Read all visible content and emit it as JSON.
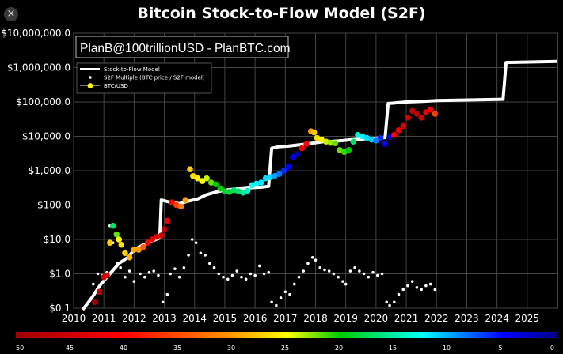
{
  "window": {
    "close_label": "×",
    "title": "Bitcoin Stock-to-Flow Model (S2F)"
  },
  "chart_data": {
    "type": "scatter",
    "title": "Bitcoin Stock-to-Flow Model (S2F)",
    "watermark": "PlanB@100trillionUSD - PlanBTC.com",
    "y_scale": "log",
    "ylim": [
      0.1,
      10000000
    ],
    "xlim": [
      2010,
      2026
    ],
    "grid": true,
    "legend_position": "top-left",
    "y_ticks": [
      {
        "value": 10000000,
        "label": "$10,000,000.0"
      },
      {
        "value": 1000000,
        "label": "$1,000,000.0"
      },
      {
        "value": 100000,
        "label": "$100,000.0"
      },
      {
        "value": 10000,
        "label": "$10,000.0"
      },
      {
        "value": 1000,
        "label": "$1,000.0"
      },
      {
        "value": 100,
        "label": "$100.0"
      },
      {
        "value": 10,
        "label": "$10.0"
      },
      {
        "value": 1,
        "label": "$1.0"
      },
      {
        "value": 0.1,
        "label": "$0.1"
      }
    ],
    "x_ticks": [
      {
        "value": 2010,
        "label": "2010"
      },
      {
        "value": 2011,
        "label": "2011"
      },
      {
        "value": 2012,
        "label": "2012"
      },
      {
        "value": 2013,
        "label": "2013"
      },
      {
        "value": 2014,
        "label": "2014"
      },
      {
        "value": 2015,
        "label": "2015"
      },
      {
        "value": 2016,
        "label": "2016"
      },
      {
        "value": 2017,
        "label": "2017"
      },
      {
        "value": 2018,
        "label": "2018"
      },
      {
        "value": 2019,
        "label": "2019"
      },
      {
        "value": 2020,
        "label": "2020"
      },
      {
        "value": 2021,
        "label": "2021"
      },
      {
        "value": 2022,
        "label": "2022"
      },
      {
        "value": 2023,
        "label": "2023"
      },
      {
        "value": 2024,
        "label": "2024"
      },
      {
        "value": 2025,
        "label": "2025"
      }
    ],
    "legend": [
      {
        "label": "Stock-to-Flow Model",
        "color": "#ffffff",
        "kind": "line"
      },
      {
        "label": "S2F Multiple (BTC price / S2F model)",
        "color": "#ffffff",
        "kind": "dot"
      },
      {
        "label": "BTC/USD",
        "color": "#ffff00",
        "kind": "dot"
      }
    ],
    "colorbar": {
      "ticks": [
        {
          "value": 50,
          "label": "50"
        },
        {
          "value": 45,
          "label": "45"
        },
        {
          "value": 40,
          "label": "40"
        },
        {
          "value": 35,
          "label": "35"
        },
        {
          "value": 30,
          "label": "30"
        },
        {
          "value": 25,
          "label": "25"
        },
        {
          "value": 20,
          "label": "20"
        },
        {
          "value": 15,
          "label": "15"
        },
        {
          "value": 10,
          "label": "10"
        },
        {
          "value": 5,
          "label": "5"
        },
        {
          "value": 0,
          "label": "0"
        }
      ]
    },
    "series": [
      {
        "name": "Stock-to-Flow Model",
        "kind": "line",
        "color": "#ffffff",
        "x": [
          2010.3,
          2010.6,
          2010.9,
          2011.2,
          2011.5,
          2011.8,
          2012.0,
          2012.3,
          2012.6,
          2012.85,
          2012.9,
          2013.2,
          2013.5,
          2013.8,
          2014.1,
          2014.4,
          2014.7,
          2015.0,
          2015.3,
          2015.6,
          2015.9,
          2016.2,
          2016.45,
          2016.55,
          2016.8,
          2017.1,
          2017.4,
          2017.7,
          2018.0,
          2018.3,
          2018.6,
          2018.9,
          2019.2,
          2019.5,
          2019.8,
          2020.1,
          2020.3,
          2020.4,
          2020.7,
          2021.0,
          2021.3,
          2021.6,
          2021.9,
          2022.0,
          2024.2,
          2024.3,
          2026.0
        ],
        "y": [
          0.09,
          0.2,
          0.5,
          1.0,
          2.0,
          3.0,
          5.0,
          7.0,
          9.0,
          11.0,
          140,
          120,
          110,
          130,
          150,
          200,
          240,
          270,
          290,
          300,
          320,
          330,
          350,
          4500,
          5000,
          5200,
          5600,
          6000,
          6500,
          7000,
          7200,
          7500,
          8000,
          8300,
          8600,
          8900,
          9200,
          90000,
          95000,
          100000,
          102000,
          105000,
          108000,
          110000,
          120000,
          1400000,
          1500000
        ]
      },
      {
        "name": "S2F Multiple (BTC price / S2F model)",
        "kind": "dots",
        "color": "#ffffff",
        "x": [
          2010.5,
          2010.65,
          2010.8,
          2010.95,
          2011.1,
          2011.2,
          2011.3,
          2011.45,
          2011.55,
          2011.7,
          2011.85,
          2012.0,
          2012.2,
          2012.35,
          2012.5,
          2012.65,
          2012.8,
          2012.95,
          2013.1,
          2013.2,
          2013.35,
          2013.5,
          2013.65,
          2013.8,
          2013.92,
          2014.05,
          2014.2,
          2014.35,
          2014.5,
          2014.65,
          2014.8,
          2014.95,
          2015.1,
          2015.25,
          2015.4,
          2015.55,
          2015.7,
          2015.85,
          2016.0,
          2016.15,
          2016.3,
          2016.45,
          2016.55,
          2016.7,
          2016.85,
          2017.0,
          2017.15,
          2017.3,
          2017.45,
          2017.6,
          2017.75,
          2017.9,
          2018.0,
          2018.15,
          2018.3,
          2018.45,
          2018.6,
          2018.75,
          2018.9,
          2019.0,
          2019.15,
          2019.3,
          2019.45,
          2019.6,
          2019.75,
          2019.9,
          2020.05,
          2020.2,
          2020.35,
          2020.45,
          2020.6,
          2020.75,
          2020.9,
          2021.05,
          2021.2,
          2021.35,
          2021.5,
          2021.65,
          2021.8,
          2021.95
        ],
        "y": [
          0.15,
          0.5,
          1.0,
          0.9,
          1.1,
          25,
          8,
          2,
          1.5,
          0.8,
          1.2,
          0.6,
          1.0,
          0.8,
          1.1,
          1.2,
          0.9,
          0.15,
          0.25,
          1.0,
          1.4,
          0.8,
          1.5,
          3.5,
          10,
          8,
          4,
          3.5,
          2,
          1.5,
          1,
          0.8,
          0.7,
          0.9,
          1.2,
          0.8,
          0.7,
          1.0,
          0.9,
          1.7,
          1.0,
          1.1,
          0.15,
          0.12,
          0.2,
          0.3,
          0.25,
          0.5,
          0.8,
          1.2,
          2.0,
          3.0,
          2.5,
          1.5,
          1.3,
          1.2,
          1.0,
          0.8,
          0.6,
          0.5,
          1.2,
          1.5,
          1.2,
          1.0,
          0.8,
          1.1,
          0.9,
          1.0,
          0.15,
          0.12,
          0.15,
          0.25,
          0.35,
          0.45,
          0.6,
          0.4,
          0.35,
          0.45,
          0.5,
          0.35
        ]
      },
      {
        "name": "BTC/USD",
        "kind": "colored_dots",
        "x": [
          2010.7,
          2010.85,
          2011.0,
          2011.1,
          2011.2,
          2011.3,
          2011.42,
          2011.5,
          2011.58,
          2011.7,
          2011.85,
          2012.0,
          2012.15,
          2012.3,
          2012.45,
          2012.6,
          2012.75,
          2012.9,
          2013.0,
          2013.1,
          2013.25,
          2013.4,
          2013.55,
          2013.7,
          2013.85,
          2013.95,
          2014.1,
          2014.25,
          2014.4,
          2014.55,
          2014.7,
          2014.85,
          2015.0,
          2015.15,
          2015.3,
          2015.45,
          2015.6,
          2015.75,
          2015.9,
          2016.05,
          2016.2,
          2016.35,
          2016.5,
          2016.65,
          2016.8,
          2016.95,
          2017.1,
          2017.25,
          2017.4,
          2017.55,
          2017.7,
          2017.85,
          2017.95,
          2018.05,
          2018.2,
          2018.35,
          2018.5,
          2018.65,
          2018.8,
          2018.95,
          2019.1,
          2019.25,
          2019.4,
          2019.55,
          2019.7,
          2019.85,
          2020.0,
          2020.15,
          2020.3,
          2020.45,
          2020.6,
          2020.75,
          2020.9,
          2021.05,
          2021.2,
          2021.35,
          2021.5,
          2021.65,
          2021.8,
          2021.95
        ],
        "y": [
          0.15,
          0.3,
          0.8,
          0.9,
          8,
          25,
          14,
          10,
          7,
          4,
          3,
          5,
          5,
          6,
          8,
          10,
          12,
          13,
          20,
          35,
          120,
          100,
          90,
          140,
          1100,
          700,
          600,
          500,
          600,
          450,
          400,
          300,
          250,
          240,
          270,
          250,
          230,
          260,
          380,
          420,
          450,
          600,
          650,
          700,
          800,
          1000,
          1300,
          2500,
          3000,
          4500,
          6000,
          14000,
          13000,
          9000,
          8000,
          7000,
          6500,
          6300,
          4000,
          3500,
          4000,
          7000,
          11000,
          10000,
          9000,
          8000,
          7500,
          9000,
          6000,
          9500,
          11000,
          15000,
          20000,
          35000,
          55000,
          45000,
          35000,
          50000,
          60000,
          45000
        ],
        "multiple_value": [
          50,
          47,
          45,
          44,
          30,
          18,
          22,
          25,
          28,
          30,
          32,
          34,
          35,
          37,
          40,
          42,
          44,
          45,
          47,
          42,
          40,
          38,
          36,
          34,
          30,
          28,
          26,
          25,
          24,
          22,
          20,
          20,
          19,
          19,
          18,
          18,
          17,
          16,
          15,
          14,
          13,
          12,
          11,
          9,
          8,
          6,
          5,
          4,
          2,
          42,
          40,
          35,
          30,
          28,
          26,
          24,
          23,
          22,
          22,
          21,
          20,
          18,
          16,
          14,
          12,
          10,
          8,
          6,
          4,
          2,
          40,
          42,
          44,
          45,
          47,
          48,
          45,
          42,
          40,
          38
        ]
      }
    ]
  }
}
